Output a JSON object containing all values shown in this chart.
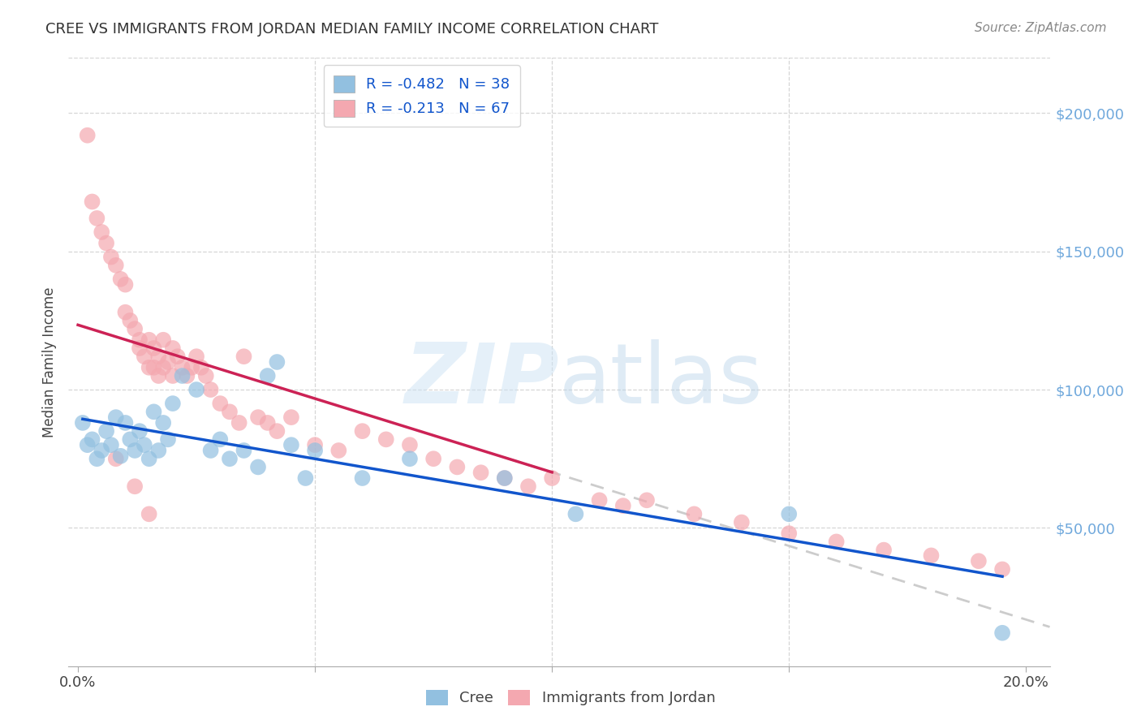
{
  "title": "CREE VS IMMIGRANTS FROM JORDAN MEDIAN FAMILY INCOME CORRELATION CHART",
  "source": "Source: ZipAtlas.com",
  "ylabel": "Median Family Income",
  "ytick_labels": [
    "$50,000",
    "$100,000",
    "$150,000",
    "$200,000"
  ],
  "ytick_values": [
    50000,
    100000,
    150000,
    200000
  ],
  "ylim": [
    0,
    220000
  ],
  "xlim": [
    -0.002,
    0.205
  ],
  "cree_color": "#92c0e0",
  "jordan_color": "#f4a8b0",
  "trend_cree_color": "#1155cc",
  "trend_jordan_color": "#cc2255",
  "trend_ext_color": "#cccccc",
  "background_color": "#ffffff",
  "grid_color": "#cccccc",
  "cree_x": [
    0.001,
    0.002,
    0.003,
    0.004,
    0.005,
    0.006,
    0.007,
    0.008,
    0.009,
    0.01,
    0.011,
    0.012,
    0.013,
    0.014,
    0.015,
    0.016,
    0.017,
    0.018,
    0.019,
    0.02,
    0.022,
    0.025,
    0.028,
    0.03,
    0.032,
    0.035,
    0.038,
    0.04,
    0.042,
    0.045,
    0.048,
    0.05,
    0.06,
    0.07,
    0.09,
    0.105,
    0.15,
    0.195
  ],
  "cree_y": [
    88000,
    80000,
    82000,
    75000,
    78000,
    85000,
    80000,
    90000,
    76000,
    88000,
    82000,
    78000,
    85000,
    80000,
    75000,
    92000,
    78000,
    88000,
    82000,
    95000,
    105000,
    100000,
    78000,
    82000,
    75000,
    78000,
    72000,
    105000,
    110000,
    80000,
    68000,
    78000,
    68000,
    75000,
    68000,
    55000,
    55000,
    12000
  ],
  "jordan_x": [
    0.002,
    0.003,
    0.004,
    0.005,
    0.006,
    0.007,
    0.008,
    0.009,
    0.01,
    0.01,
    0.011,
    0.012,
    0.013,
    0.013,
    0.014,
    0.015,
    0.015,
    0.016,
    0.016,
    0.017,
    0.017,
    0.018,
    0.018,
    0.019,
    0.02,
    0.02,
    0.021,
    0.022,
    0.023,
    0.024,
    0.025,
    0.026,
    0.027,
    0.028,
    0.03,
    0.032,
    0.034,
    0.035,
    0.038,
    0.04,
    0.042,
    0.045,
    0.05,
    0.055,
    0.06,
    0.065,
    0.07,
    0.075,
    0.08,
    0.085,
    0.09,
    0.095,
    0.1,
    0.11,
    0.115,
    0.12,
    0.13,
    0.14,
    0.15,
    0.16,
    0.17,
    0.18,
    0.19,
    0.195,
    0.008,
    0.012,
    0.015
  ],
  "jordan_y": [
    192000,
    168000,
    162000,
    157000,
    153000,
    148000,
    145000,
    140000,
    138000,
    128000,
    125000,
    122000,
    118000,
    115000,
    112000,
    118000,
    108000,
    115000,
    108000,
    112000,
    105000,
    118000,
    108000,
    110000,
    105000,
    115000,
    112000,
    108000,
    105000,
    108000,
    112000,
    108000,
    105000,
    100000,
    95000,
    92000,
    88000,
    112000,
    90000,
    88000,
    85000,
    90000,
    80000,
    78000,
    85000,
    82000,
    80000,
    75000,
    72000,
    70000,
    68000,
    65000,
    68000,
    60000,
    58000,
    60000,
    55000,
    52000,
    48000,
    45000,
    42000,
    40000,
    38000,
    35000,
    75000,
    65000,
    55000
  ]
}
